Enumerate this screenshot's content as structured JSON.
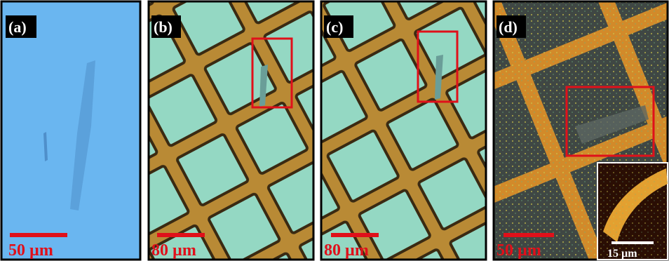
{
  "panels": [
    {
      "label": "(a)",
      "scale": "50 µm"
    },
    {
      "label": "(b)",
      "scale": "80 µm"
    },
    {
      "label": "(c)",
      "scale": "80 µm"
    },
    {
      "label": "(d)",
      "scale": "50 µm"
    }
  ],
  "inset": {
    "scale": "15 µm"
  }
}
